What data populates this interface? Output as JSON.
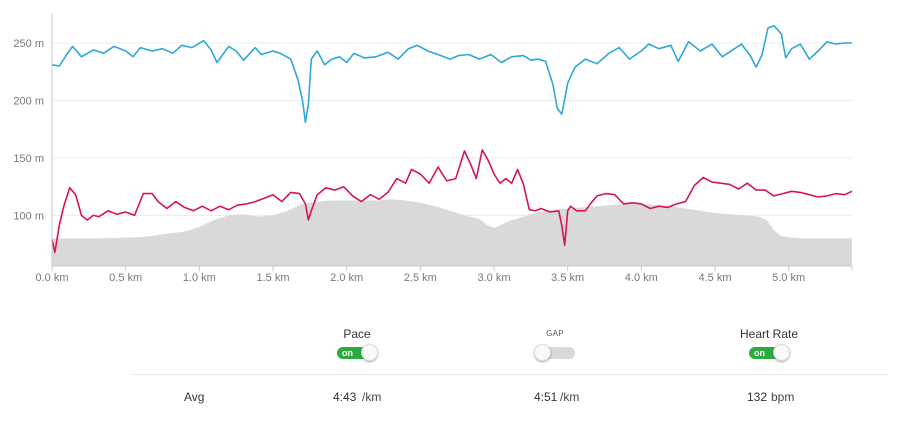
{
  "chart_data": {
    "type": "line",
    "xlabel": "",
    "ylabel": "",
    "xlim": [
      0,
      5.43
    ],
    "ylim": [
      56,
      270
    ],
    "x_ticks": [
      0,
      0.5,
      1.0,
      1.5,
      2.0,
      2.5,
      3.0,
      3.5,
      4.0,
      4.5,
      5.0
    ],
    "x_tick_labels": [
      "0.0 km",
      "0.5 km",
      "1.0 km",
      "1.5 km",
      "2.0 km",
      "2.5 km",
      "3.0 km",
      "3.5 km",
      "4.0 km",
      "4.5 km",
      "5.0 km"
    ],
    "y_ticks": [
      100,
      150,
      200,
      250
    ],
    "y_tick_labels": [
      "100 m",
      "150 m",
      "200 m",
      "250 m"
    ],
    "grid": true,
    "series": [
      {
        "color": "#2ea8d8",
        "x": [
          0,
          0.05,
          0.1,
          0.14,
          0.2,
          0.28,
          0.35,
          0.42,
          0.5,
          0.55,
          0.6,
          0.68,
          0.75,
          0.82,
          0.88,
          0.95,
          1.03,
          1.08,
          1.12,
          1.2,
          1.25,
          1.3,
          1.38,
          1.42,
          1.5,
          1.55,
          1.62,
          1.67,
          1.7,
          1.72,
          1.74,
          1.76,
          1.8,
          1.85,
          1.9,
          1.95,
          2.0,
          2.05,
          2.12,
          2.2,
          2.28,
          2.35,
          2.42,
          2.48,
          2.55,
          2.62,
          2.7,
          2.76,
          2.83,
          2.9,
          2.98,
          3.05,
          3.12,
          3.2,
          3.25,
          3.3,
          3.35,
          3.4,
          3.43,
          3.46,
          3.5,
          3.55,
          3.62,
          3.7,
          3.78,
          3.85,
          3.92,
          4.0,
          4.05,
          4.12,
          4.2,
          4.25,
          4.32,
          4.4,
          4.48,
          4.55,
          4.62,
          4.68,
          4.74,
          4.78,
          4.82,
          4.86,
          4.9,
          4.95,
          4.98,
          5.02,
          5.08,
          5.14,
          5.2,
          5.26,
          5.32,
          5.38,
          5.43
        ],
        "values": [
          231,
          230,
          240,
          247,
          238,
          244,
          241,
          247,
          243,
          238,
          246,
          243,
          245,
          241,
          248,
          246,
          252,
          244,
          233,
          247,
          243,
          235,
          246,
          240,
          243,
          241,
          236,
          218,
          200,
          181,
          197,
          236,
          243,
          231,
          236,
          238,
          233,
          241,
          237,
          238,
          242,
          236,
          245,
          248,
          243,
          240,
          236,
          239,
          240,
          236,
          240,
          233,
          238,
          239,
          235,
          236,
          234,
          214,
          193,
          188,
          215,
          229,
          236,
          232,
          241,
          246,
          236,
          243,
          249,
          245,
          248,
          234,
          251,
          243,
          249,
          238,
          244,
          249,
          239,
          229,
          240,
          263,
          265,
          258,
          237,
          245,
          249,
          236,
          243,
          251,
          249,
          250,
          250
        ]
      },
      {
        "color": "#d6174f",
        "x": [
          0,
          0.02,
          0.05,
          0.08,
          0.12,
          0.16,
          0.2,
          0.24,
          0.28,
          0.32,
          0.38,
          0.44,
          0.5,
          0.56,
          0.62,
          0.68,
          0.72,
          0.78,
          0.84,
          0.9,
          0.96,
          1.02,
          1.08,
          1.14,
          1.2,
          1.26,
          1.32,
          1.38,
          1.44,
          1.5,
          1.56,
          1.62,
          1.68,
          1.72,
          1.74,
          1.76,
          1.8,
          1.86,
          1.92,
          1.98,
          2.04,
          2.1,
          2.16,
          2.22,
          2.28,
          2.34,
          2.4,
          2.44,
          2.5,
          2.56,
          2.62,
          2.68,
          2.74,
          2.8,
          2.84,
          2.88,
          2.92,
          2.96,
          3.0,
          3.04,
          3.08,
          3.12,
          3.16,
          3.2,
          3.24,
          3.28,
          3.32,
          3.38,
          3.44,
          3.46,
          3.48,
          3.5,
          3.52,
          3.56,
          3.62,
          3.66,
          3.7,
          3.76,
          3.82,
          3.88,
          3.94,
          4.0,
          4.06,
          4.12,
          4.18,
          4.24,
          4.3,
          4.36,
          4.42,
          4.48,
          4.54,
          4.6,
          4.66,
          4.72,
          4.78,
          4.84,
          4.9,
          4.96,
          5.02,
          5.08,
          5.14,
          5.2,
          5.26,
          5.32,
          5.38,
          5.43
        ],
        "values": [
          79,
          68,
          92,
          108,
          124,
          118,
          100,
          96,
          100,
          99,
          104,
          101,
          103,
          100,
          119,
          119,
          112,
          106,
          112,
          107,
          104,
          108,
          104,
          108,
          105,
          109,
          110,
          112,
          115,
          118,
          112,
          120,
          119,
          110,
          96,
          104,
          118,
          124,
          122,
          125,
          117,
          112,
          118,
          114,
          120,
          132,
          128,
          140,
          136,
          128,
          142,
          130,
          132,
          156,
          145,
          132,
          157,
          148,
          136,
          128,
          132,
          128,
          140,
          127,
          105,
          104,
          106,
          103,
          104,
          91,
          74,
          104,
          108,
          104,
          104,
          111,
          117,
          119,
          118,
          110,
          111,
          110,
          106,
          108,
          107,
          110,
          112,
          126,
          133,
          129,
          128,
          127,
          123,
          128,
          122,
          122,
          117,
          119,
          121,
          120,
          118,
          116,
          117,
          119,
          118,
          121
        ]
      },
      {
        "color": "#d9d9d9",
        "type": "area",
        "x": [
          0,
          0.3,
          0.6,
          0.9,
          1.0,
          1.1,
          1.2,
          1.3,
          1.4,
          1.5,
          1.6,
          1.7,
          1.8,
          1.9,
          2.0,
          2.1,
          2.2,
          2.3,
          2.4,
          2.5,
          2.6,
          2.7,
          2.8,
          2.9,
          2.95,
          3.0,
          3.05,
          3.1,
          3.2,
          3.3,
          3.4,
          3.5,
          3.6,
          3.7,
          3.8,
          3.9,
          4.0,
          4.1,
          4.2,
          4.3,
          4.4,
          4.5,
          4.6,
          4.7,
          4.8,
          4.85,
          4.9,
          4.95,
          5.0,
          5.1,
          5.2,
          5.3,
          5.43
        ],
        "values": [
          80,
          80,
          81,
          86,
          90,
          96,
          100,
          101,
          99,
          100,
          104,
          110,
          112,
          113,
          113,
          113,
          113,
          114,
          113,
          111,
          108,
          104,
          100,
          97,
          92,
          89,
          92,
          95,
          99,
          103,
          105,
          106,
          107,
          108,
          109,
          110,
          110,
          109,
          108,
          106,
          104,
          102,
          101,
          100,
          99,
          96,
          87,
          82,
          81,
          80,
          80,
          80,
          80
        ]
      }
    ]
  },
  "controls": {
    "pace": {
      "label": "Pace",
      "toggle": "on",
      "state": "on"
    },
    "gap": {
      "label": "GAP",
      "state": "off"
    },
    "heart_rate": {
      "label": "Heart Rate",
      "toggle": "on",
      "state": "on"
    }
  },
  "avg": {
    "label": "Avg",
    "pace_value": "4:43",
    "pace_unit": "/km",
    "gap_value": "4:51",
    "gap_unit": "/km",
    "hr_value": "132",
    "hr_unit": "bpm"
  }
}
